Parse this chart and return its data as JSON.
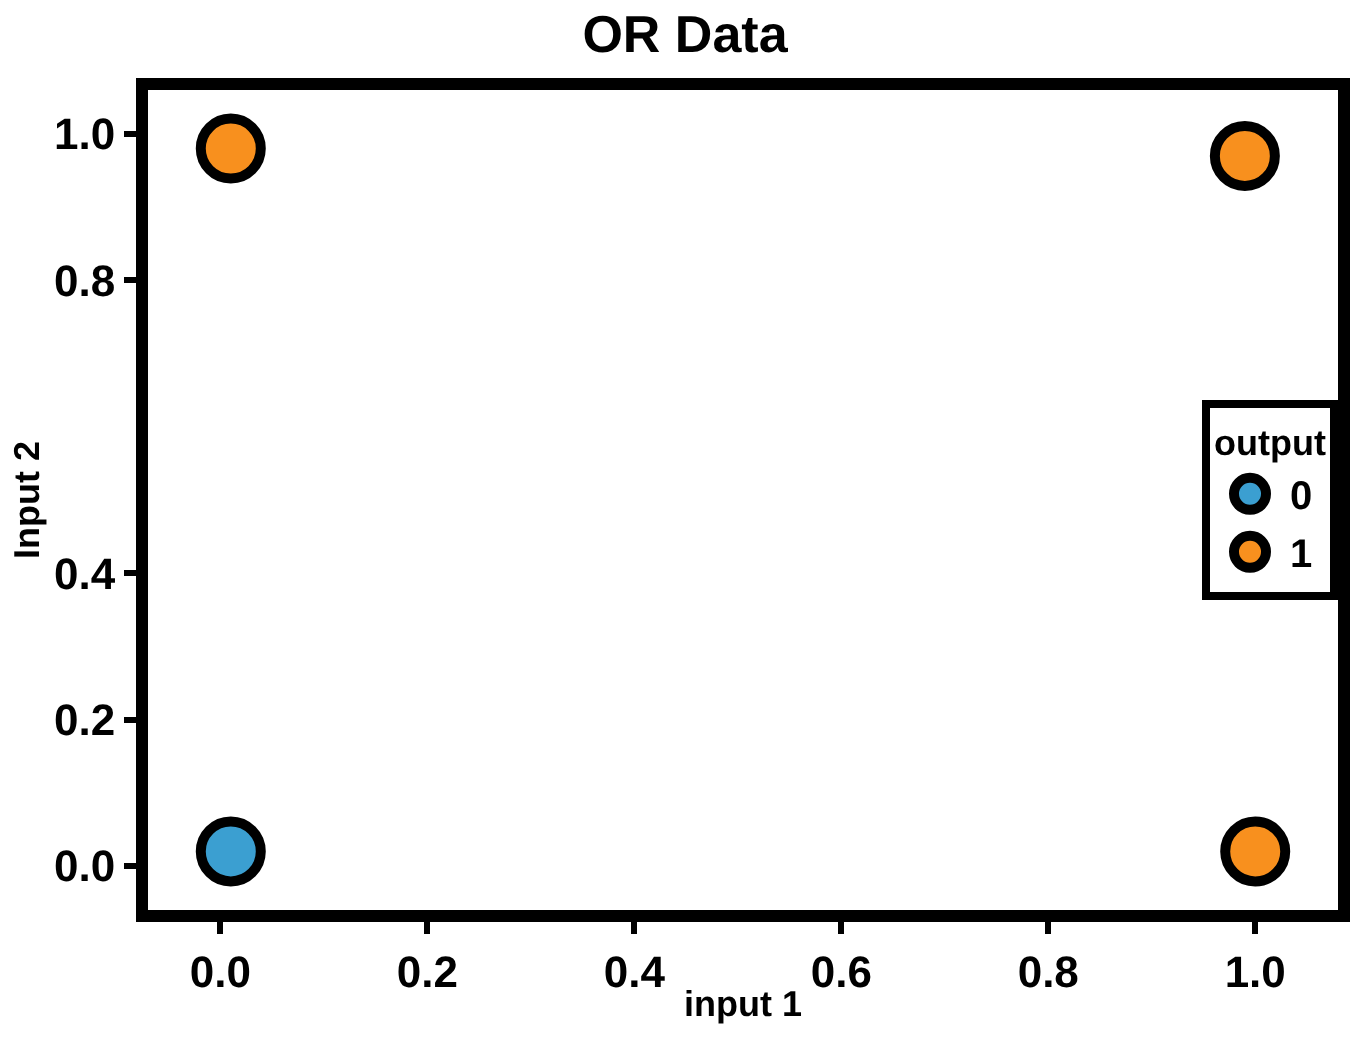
{
  "chart_data": {
    "type": "scatter",
    "title": "OR Data",
    "xlabel": "input 1",
    "ylabel": "Input 2",
    "legend_title": "output",
    "x": [
      0.01,
      0.01,
      0.99,
      1.0
    ],
    "series": [
      {
        "name": "0",
        "color": "#3b9fd1",
        "values": [
          0.02,
          null,
          null,
          null
        ]
      },
      {
        "name": "1",
        "color": "#f8901e",
        "values": [
          null,
          0.98,
          0.97,
          0.02
        ]
      }
    ],
    "xlim": [
      -0.07,
      1.08
    ],
    "ylim": [
      -0.06,
      1.06
    ],
    "xticks": [
      {
        "value": 0.0,
        "label": "0.0"
      },
      0.2,
      0.4,
      0.6,
      0.8,
      {
        "value": 1.0,
        "label": "1.0"
      }
    ],
    "yticks": [
      {
        "value": 0.0,
        "label": "0.0"
      },
      0.2,
      0.4,
      0.8,
      {
        "value": 1.0,
        "label": "1.0"
      }
    ],
    "legend": "right",
    "marker": "circle"
  }
}
